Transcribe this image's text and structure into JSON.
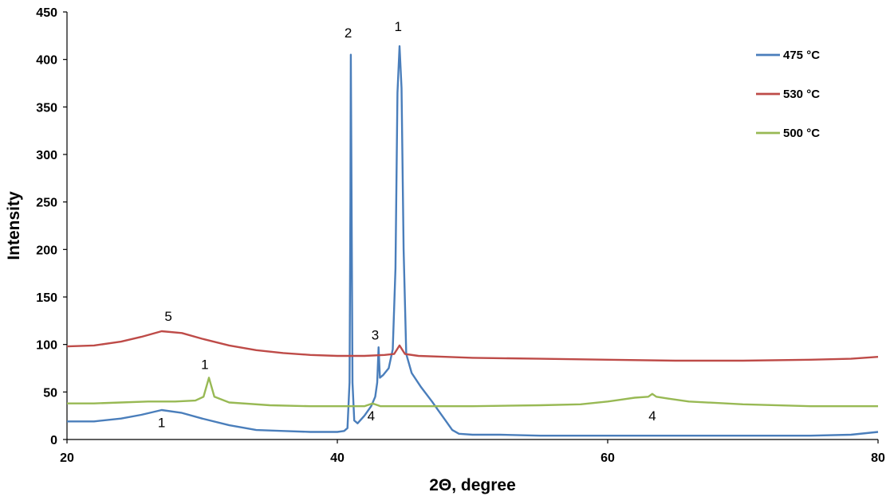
{
  "chart_data": {
    "type": "line",
    "xlabel": "2Θ, degree",
    "ylabel": "Intensity",
    "xlim": [
      20,
      80
    ],
    "ylim": [
      0,
      450
    ],
    "xticks": [
      20,
      40,
      60,
      80
    ],
    "yticks": [
      0,
      50,
      100,
      150,
      200,
      250,
      300,
      350,
      400,
      450
    ],
    "grid": false,
    "legend_position": "top-right",
    "series": [
      {
        "name": "475 °C",
        "color": "#4A7EBB",
        "points": [
          [
            20,
            19
          ],
          [
            22,
            19
          ],
          [
            24,
            22
          ],
          [
            25.5,
            26
          ],
          [
            27,
            31
          ],
          [
            28.5,
            28
          ],
          [
            30,
            22
          ],
          [
            32,
            15
          ],
          [
            34,
            10
          ],
          [
            36,
            9
          ],
          [
            38,
            8
          ],
          [
            40,
            8
          ],
          [
            40.5,
            9
          ],
          [
            40.75,
            12
          ],
          [
            40.9,
            60
          ],
          [
            40.97,
            250
          ],
          [
            41.0,
            405
          ],
          [
            41.05,
            260
          ],
          [
            41.12,
            60
          ],
          [
            41.25,
            20
          ],
          [
            41.5,
            17
          ],
          [
            42,
            25
          ],
          [
            42.5,
            35
          ],
          [
            42.8,
            45
          ],
          [
            42.95,
            60
          ],
          [
            43.05,
            97
          ],
          [
            43.15,
            65
          ],
          [
            43.4,
            68
          ],
          [
            43.8,
            75
          ],
          [
            44.1,
            95
          ],
          [
            44.3,
            180
          ],
          [
            44.45,
            365
          ],
          [
            44.6,
            414
          ],
          [
            44.75,
            370
          ],
          [
            44.9,
            200
          ],
          [
            45.1,
            90
          ],
          [
            45.5,
            70
          ],
          [
            46.2,
            55
          ],
          [
            47,
            40
          ],
          [
            47.5,
            30
          ],
          [
            48,
            20
          ],
          [
            48.5,
            10
          ],
          [
            49,
            6
          ],
          [
            50,
            5
          ],
          [
            52,
            5
          ],
          [
            55,
            4
          ],
          [
            60,
            4
          ],
          [
            65,
            4
          ],
          [
            70,
            4
          ],
          [
            75,
            4
          ],
          [
            78,
            5
          ],
          [
            80,
            8
          ]
        ]
      },
      {
        "name": "530 °C",
        "color": "#BE4B48",
        "points": [
          [
            20,
            98
          ],
          [
            22,
            99
          ],
          [
            24,
            103
          ],
          [
            25.5,
            108
          ],
          [
            27,
            114
          ],
          [
            28.5,
            112
          ],
          [
            30,
            106
          ],
          [
            32,
            99
          ],
          [
            34,
            94
          ],
          [
            36,
            91
          ],
          [
            38,
            89
          ],
          [
            40,
            88
          ],
          [
            42,
            88
          ],
          [
            43.5,
            89
          ],
          [
            44.2,
            90
          ],
          [
            44.6,
            99
          ],
          [
            45,
            90
          ],
          [
            46,
            88
          ],
          [
            48,
            87
          ],
          [
            50,
            86
          ],
          [
            55,
            85
          ],
          [
            60,
            84
          ],
          [
            65,
            83
          ],
          [
            70,
            83
          ],
          [
            75,
            84
          ],
          [
            78,
            85
          ],
          [
            80,
            87
          ]
        ]
      },
      {
        "name": "500 °C",
        "color": "#98B954",
        "points": [
          [
            20,
            38
          ],
          [
            22,
            38
          ],
          [
            24,
            39
          ],
          [
            26,
            40
          ],
          [
            28,
            40
          ],
          [
            29.5,
            41
          ],
          [
            30.1,
            45
          ],
          [
            30.4,
            60
          ],
          [
            30.5,
            65
          ],
          [
            30.6,
            60
          ],
          [
            30.9,
            45
          ],
          [
            32,
            39
          ],
          [
            35,
            36
          ],
          [
            38,
            35
          ],
          [
            40,
            35
          ],
          [
            42,
            35
          ],
          [
            42.6,
            38
          ],
          [
            43.2,
            35
          ],
          [
            45,
            35
          ],
          [
            50,
            35
          ],
          [
            55,
            36
          ],
          [
            58,
            37
          ],
          [
            60,
            40
          ],
          [
            61,
            42
          ],
          [
            62,
            44
          ],
          [
            63,
            45
          ],
          [
            63.3,
            48
          ],
          [
            63.6,
            45
          ],
          [
            64.5,
            43
          ],
          [
            66,
            40
          ],
          [
            70,
            37
          ],
          [
            75,
            35
          ],
          [
            80,
            35
          ]
        ]
      }
    ],
    "annotations": [
      {
        "text": "2",
        "x": 40.8,
        "y": 423
      },
      {
        "text": "1",
        "x": 44.5,
        "y": 430
      },
      {
        "text": "3",
        "x": 42.8,
        "y": 105
      },
      {
        "text": "5",
        "x": 27.5,
        "y": 125
      },
      {
        "text": "1",
        "x": 30.2,
        "y": 74
      },
      {
        "text": "4",
        "x": 42.5,
        "y": 20
      },
      {
        "text": "4",
        "x": 63.3,
        "y": 20
      },
      {
        "text": "1",
        "x": 27.0,
        "y": 13
      }
    ]
  }
}
